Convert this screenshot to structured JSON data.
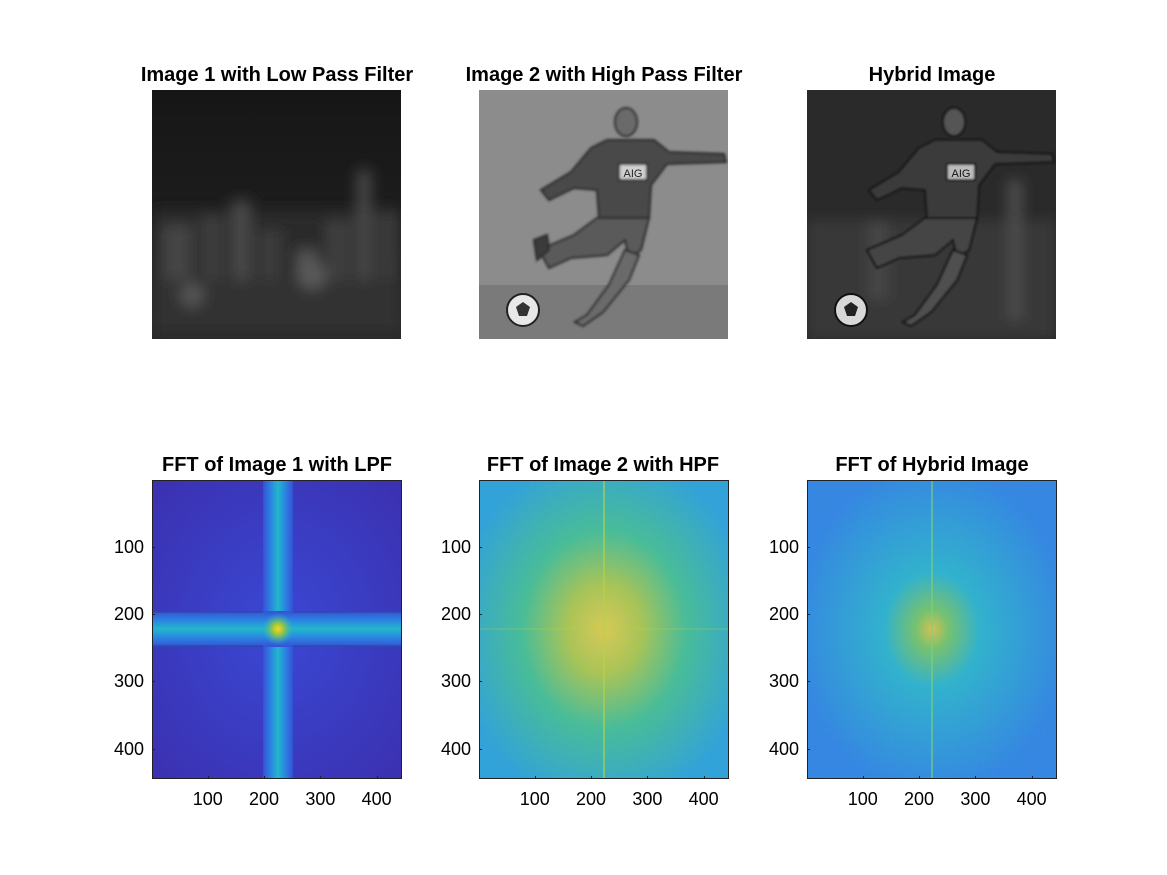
{
  "panels": [
    {
      "title": "Image 1 with Low Pass Filter"
    },
    {
      "title": "Image 2 with High Pass Filter"
    },
    {
      "title": "Hybrid Image"
    },
    {
      "title": "FFT of Image 1 with LPF"
    },
    {
      "title": "FFT of Image 2 with HPF"
    },
    {
      "title": "FFT of Hybrid Image"
    }
  ],
  "photo_panels": [
    {
      "content": "blurred city skyline at night",
      "jersey_text": ""
    },
    {
      "content": "soccer player kicking ball (edges only)",
      "jersey_text": "AIG"
    },
    {
      "content": "soccer player over blurred skyline",
      "jersey_text": "AIG"
    }
  ],
  "axes": {
    "y_ticks": [
      "100",
      "200",
      "300",
      "400"
    ],
    "x_ticks": [
      "100",
      "200",
      "300",
      "400"
    ],
    "y_values": [
      100,
      200,
      300,
      400
    ],
    "x_values": [
      100,
      200,
      300,
      400
    ],
    "range": [
      1,
      445
    ]
  },
  "colors": {
    "parula_dark": "#3e26a8",
    "parula_blue": "#2f6ee2",
    "parula_cyan": "#23b8c8",
    "parula_green": "#74c554",
    "parula_yellow": "#f9d52c"
  }
}
